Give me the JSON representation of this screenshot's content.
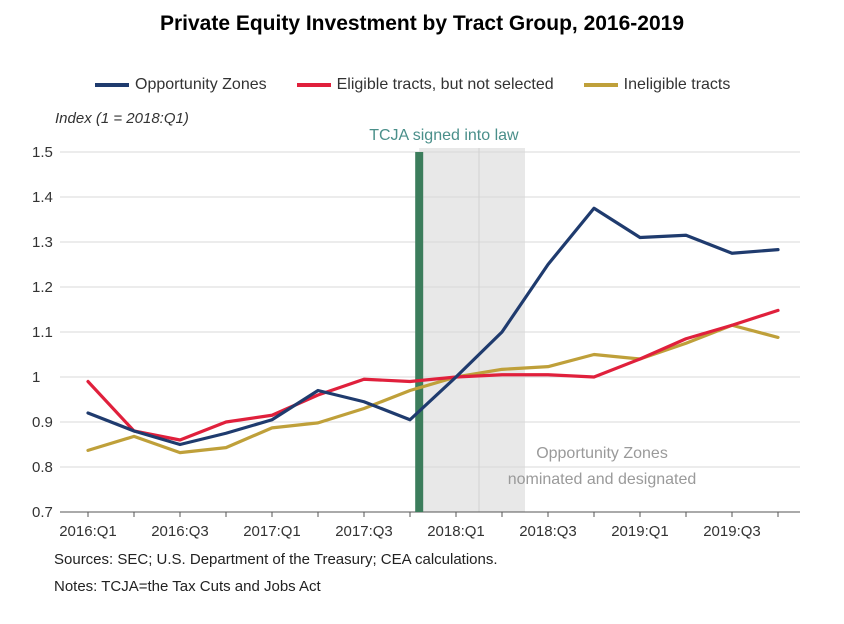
{
  "chart_data": {
    "type": "line",
    "title": "Private Equity Investment by Tract Group, 2016-2019",
    "ylabel": "Index (1 = 2018:Q1)",
    "xlabel": "",
    "ylim": [
      0.7,
      1.5
    ],
    "yticks": [
      "0.7",
      "0.8",
      "0.9",
      "1",
      "1.1",
      "1.2",
      "1.3",
      "1.4",
      "1.5"
    ],
    "categories": [
      "2016:Q1",
      "2016:Q2",
      "2016:Q3",
      "2016:Q4",
      "2017:Q1",
      "2017:Q2",
      "2017:Q3",
      "2017:Q4",
      "2018:Q1",
      "2018:Q2",
      "2018:Q3",
      "2018:Q4",
      "2019:Q1",
      "2019:Q2",
      "2019:Q3",
      "2019:Q4"
    ],
    "xtick_labels": [
      "2016:Q1",
      "2016:Q3",
      "2017:Q1",
      "2017:Q3",
      "2018:Q1",
      "2018:Q3",
      "2019:Q1",
      "2019:Q3"
    ],
    "grid": true,
    "legend_position": "top",
    "series": [
      {
        "name": "Opportunity Zones",
        "color": "#1f3b6e",
        "values": [
          0.92,
          0.88,
          0.85,
          0.875,
          0.905,
          0.97,
          0.945,
          0.905,
          1.0,
          1.1,
          1.25,
          1.375,
          1.31,
          1.315,
          1.275,
          1.283
        ]
      },
      {
        "name": "Eligible tracts, but not selected",
        "color": "#e0203c",
        "values": [
          0.99,
          0.88,
          0.86,
          0.9,
          0.915,
          0.96,
          0.995,
          0.99,
          1.0,
          1.005,
          1.005,
          1.0,
          1.04,
          1.085,
          1.115,
          1.148
        ]
      },
      {
        "name": "Ineligible tracts",
        "color": "#bfa03a",
        "values": [
          0.837,
          0.868,
          0.832,
          0.843,
          0.887,
          0.898,
          0.93,
          0.97,
          1.0,
          1.017,
          1.023,
          1.05,
          1.04,
          1.075,
          1.115,
          1.088
        ]
      }
    ],
    "annotations": {
      "tcja_label": "TCJA signed into law",
      "tcja_position_quarter": 7.2,
      "tcja_color": "#3c7d5c",
      "oz_label_line1": "Opportunity Zones",
      "oz_label_line2": "nominated and designated",
      "oz_period_quarters": [
        7.2,
        9.5
      ],
      "oz_period_color": "#e8e8e8"
    }
  },
  "sources": "Sources: SEC; U.S. Department of the Treasury; CEA calculations.",
  "notes": "Notes: TCJA=the Tax Cuts and Jobs Act"
}
